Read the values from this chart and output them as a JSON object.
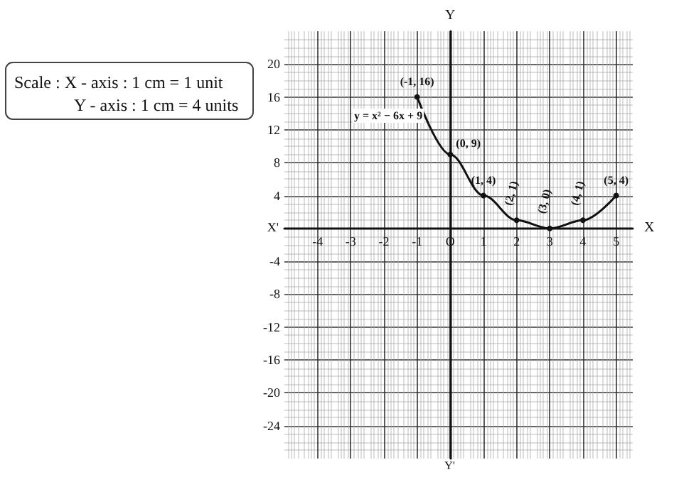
{
  "chart_data": {
    "type": "line",
    "xlabel": "X",
    "ylabel": "Y",
    "x": [
      -1,
      0,
      1,
      2,
      3,
      4,
      5
    ],
    "series": [
      {
        "color": "#111111",
        "values": [
          16,
          9,
          4,
          1,
          0,
          1,
          4
        ],
        "value_labels": [
          "(-1, 16)",
          "(0, 9)",
          "(1, 4)",
          "(2, 1)",
          "(3, 0)",
          "(4, 1)",
          "(5, 4)"
        ]
      }
    ],
    "xlim": [
      -5,
      5.5
    ],
    "ylim": [
      -28,
      24
    ],
    "xticks": [
      -4,
      -3,
      -2,
      -1,
      {
        "value": 0,
        "label": "O"
      },
      1,
      2,
      3,
      4,
      5
    ],
    "yticks": [
      -24,
      -20,
      -16,
      -12,
      -8,
      -4,
      4,
      8,
      12,
      16,
      20
    ],
    "grid": true,
    "marker": "circle",
    "line_style": "solid",
    "annotations": [
      "Scale : X - axis : 1 cm = 1 unit",
      "Y - axis : 1 cm = 4 units",
      "y = x² − 6x + 9",
      "X'",
      "Y'"
    ]
  }
}
